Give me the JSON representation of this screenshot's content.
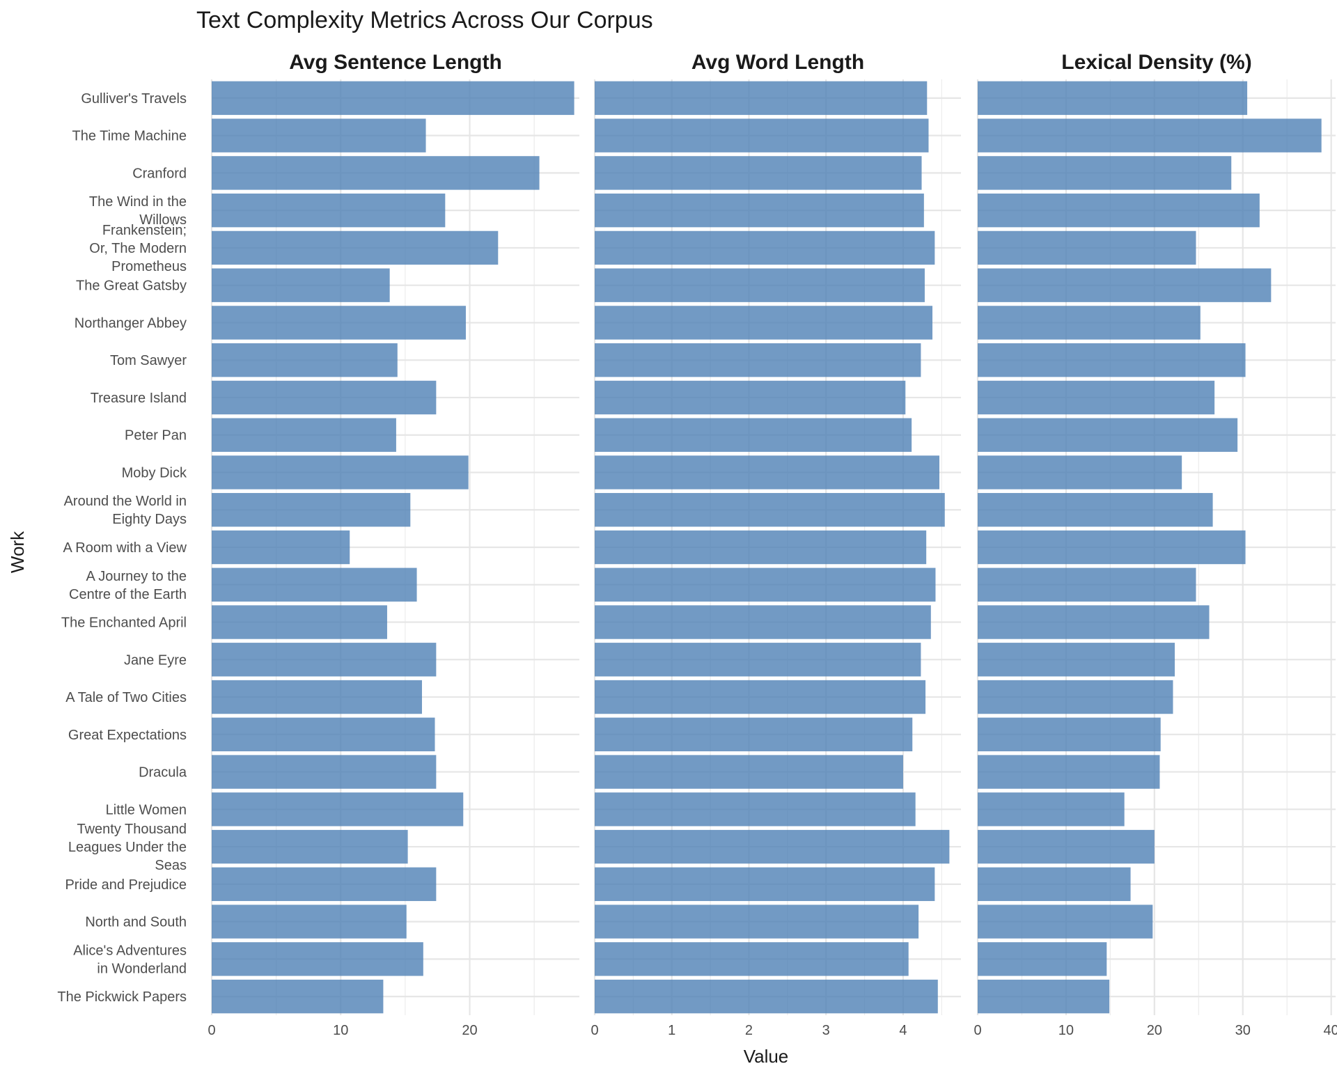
{
  "chart_data": {
    "type": "bar",
    "orientation": "horizontal",
    "title": "Text Complexity Metrics Across Our Corpus",
    "xlabel": "Value",
    "ylabel": "Work",
    "grid": true,
    "bar_color": "#4a7db4",
    "categories": [
      "Gulliver's Travels",
      "The Time Machine",
      "Cranford",
      "The Wind in the Willows",
      "Frankenstein; Or, The Modern Prometheus",
      "The Great Gatsby",
      "Northanger Abbey",
      "Tom Sawyer",
      "Treasure Island",
      "Peter Pan",
      "Moby Dick",
      "Around the World in Eighty Days",
      "A Room with a View",
      "A Journey to the Centre of the Earth",
      "The Enchanted April",
      "Jane Eyre",
      "A Tale of Two Cities",
      "Great Expectations",
      "Dracula",
      "Little Women",
      "Twenty Thousand Leagues Under the Seas",
      "Pride and Prejudice",
      "North and South",
      "Alice's Adventures in Wonderland",
      "The Pickwick Papers"
    ],
    "category_display_lines": [
      [
        "Gulliver's Travels"
      ],
      [
        "The Time Machine"
      ],
      [
        "Cranford"
      ],
      [
        "The Wind in the",
        "Willows"
      ],
      [
        "Frankenstein;",
        "Or, The Modern",
        "Prometheus"
      ],
      [
        "The Great Gatsby"
      ],
      [
        "Northanger Abbey"
      ],
      [
        "Tom Sawyer"
      ],
      [
        "Treasure Island"
      ],
      [
        "Peter Pan"
      ],
      [
        "Moby Dick"
      ],
      [
        "Around the World in",
        "Eighty Days"
      ],
      [
        "A Room with a View"
      ],
      [
        "A Journey to the",
        "Centre of the Earth"
      ],
      [
        "The Enchanted April"
      ],
      [
        "Jane Eyre"
      ],
      [
        "A Tale of Two Cities"
      ],
      [
        "Great Expectations"
      ],
      [
        "Dracula"
      ],
      [
        "Little Women"
      ],
      [
        "Twenty Thousand",
        "Leagues Under the",
        "Seas"
      ],
      [
        "Pride and Prejudice"
      ],
      [
        "North and South"
      ],
      [
        "Alice's Adventures",
        "in Wonderland"
      ],
      [
        "The Pickwick Papers"
      ]
    ],
    "panels": [
      {
        "name": "Avg Sentence Length",
        "xlim": [
          0,
          28.5
        ],
        "ticks": [
          0,
          10,
          20
        ],
        "minor_ticks": [
          5,
          15,
          25
        ],
        "values": [
          28.1,
          16.6,
          25.4,
          18.1,
          22.2,
          13.8,
          19.7,
          14.4,
          17.4,
          14.3,
          19.9,
          15.4,
          10.7,
          15.9,
          13.6,
          17.4,
          16.3,
          17.3,
          17.4,
          19.5,
          15.2,
          17.4,
          15.1,
          16.4,
          13.3
        ]
      },
      {
        "name": "Avg Word Length",
        "xlim": [
          0,
          4.75
        ],
        "ticks": [
          0,
          1,
          2,
          3,
          4
        ],
        "minor_ticks": [
          0.5,
          1.5,
          2.5,
          3.5,
          4.5
        ],
        "values": [
          4.31,
          4.33,
          4.24,
          4.27,
          4.41,
          4.28,
          4.38,
          4.23,
          4.03,
          4.11,
          4.47,
          4.54,
          4.3,
          4.42,
          4.36,
          4.23,
          4.29,
          4.12,
          4.0,
          4.16,
          4.6,
          4.41,
          4.2,
          4.07,
          4.45
        ]
      },
      {
        "name": "Lexical Density (%)",
        "xlim": [
          0,
          40.5
        ],
        "ticks": [
          0,
          10,
          20,
          30,
          40
        ],
        "minor_ticks": [
          5,
          15,
          25,
          35
        ],
        "values": [
          30.5,
          38.9,
          28.7,
          31.9,
          24.7,
          33.2,
          25.2,
          30.3,
          26.8,
          29.4,
          23.1,
          26.6,
          30.3,
          24.7,
          26.2,
          22.3,
          22.1,
          20.7,
          20.6,
          16.6,
          20.0,
          17.3,
          19.8,
          14.6,
          14.9
        ]
      }
    ]
  }
}
